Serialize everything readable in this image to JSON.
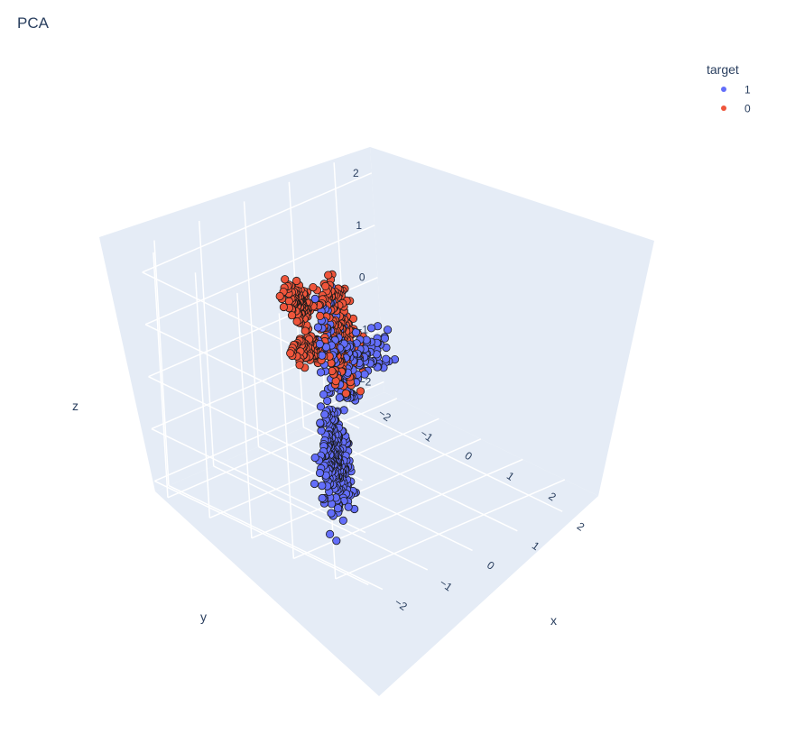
{
  "chart_data": {
    "type": "scatter3d",
    "title": "PCA",
    "legend": {
      "title": "target",
      "placement": "top-right",
      "entries": [
        "1",
        "0"
      ]
    },
    "axes": {
      "x": {
        "label": "x",
        "ticks": [
          "−2",
          "−1",
          "0",
          "1",
          "2"
        ],
        "range": [
          -2.3,
          2.8
        ]
      },
      "y": {
        "label": "y",
        "ticks": [
          "−2",
          "−1",
          "0",
          "1",
          "2"
        ],
        "range": [
          -2.3,
          2.8
        ]
      },
      "z": {
        "label": "z",
        "ticks": [
          "−2",
          "−1",
          "0",
          "1",
          "2"
        ],
        "range": [
          -2.2,
          2.5
        ]
      }
    },
    "colors": {
      "1": "#636efa",
      "0": "#ef553b",
      "plot_bg": "#e5ecf6",
      "grid": "#ffffff",
      "text": "#2a3f5f"
    },
    "series": [
      {
        "name": "1",
        "clusters": [
          {
            "center": [
              -1.9,
              1.7,
              -0.2
            ],
            "spread": [
              0.15,
              0.25,
              0.9
            ],
            "count": 260
          },
          {
            "center": [
              1.3,
              -1.2,
              -0.5
            ],
            "spread": [
              0.6,
              0.12,
              0.35
            ],
            "count": 90,
            "pattern": "grid"
          },
          {
            "center": [
              -0.5,
              0.3,
              0.25
            ],
            "spread": [
              0.08,
              0.1,
              0.08
            ],
            "count": 20
          },
          {
            "center": [
              -1.1,
              1.2,
              0.55
            ],
            "spread": [
              0.1,
              0.15,
              0.08
            ],
            "count": 20
          },
          {
            "center": [
              0.05,
              -0.35,
              0.9
            ],
            "spread": [
              0.1,
              0.25,
              0.5
            ],
            "count": 60
          },
          {
            "center": [
              -0.2,
              -0.15,
              0.85
            ],
            "spread": [
              0.2,
              0.1,
              0.25
            ],
            "count": 30
          }
        ]
      },
      {
        "name": "0",
        "clusters": [
          {
            "center": [
              -0.9,
              -0.1,
              1.7
            ],
            "spread": [
              0.15,
              0.25,
              0.3
            ],
            "count": 120
          },
          {
            "center": [
              0.4,
              -0.5,
              0.2
            ],
            "spread": [
              0.15,
              0.3,
              0.55
            ],
            "count": 170
          },
          {
            "center": [
              0.2,
              -0.5,
              1.3
            ],
            "spread": [
              0.2,
              0.2,
              0.35
            ],
            "count": 50
          },
          {
            "center": [
              -0.6,
              -0.1,
              0.8
            ],
            "spread": [
              0.35,
              0.25,
              0.2
            ],
            "count": 110
          },
          {
            "center": [
              -0.9,
              0.2,
              0.85
            ],
            "spread": [
              0.1,
              0.1,
              0.06
            ],
            "count": 20
          }
        ]
      }
    ]
  }
}
